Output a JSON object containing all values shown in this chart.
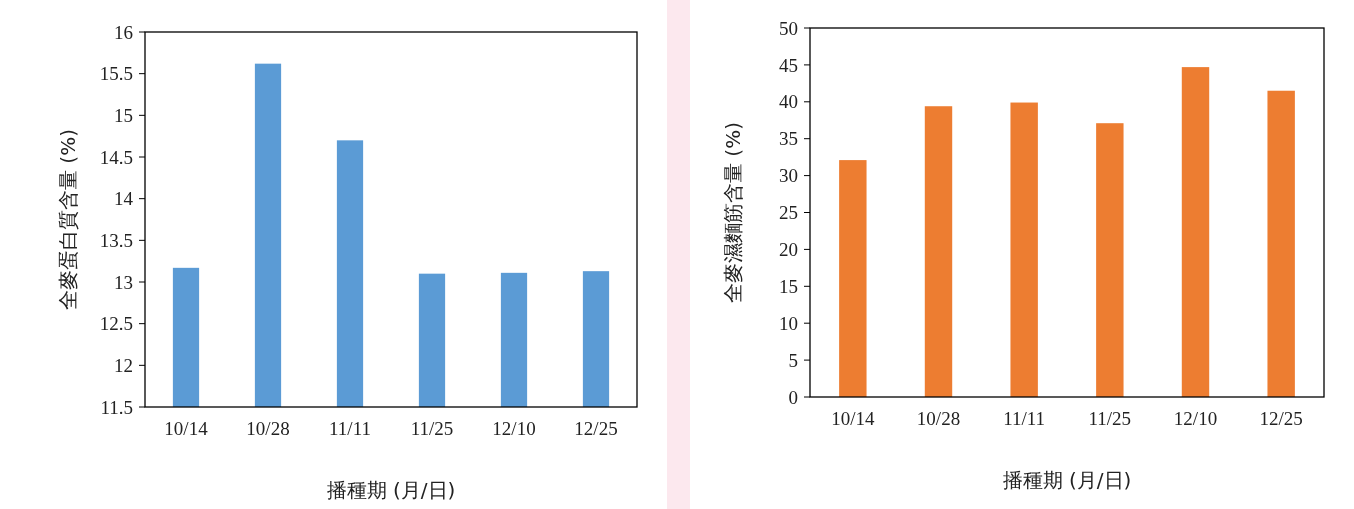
{
  "chart_data": [
    {
      "type": "bar",
      "categories": [
        "10/14",
        "10/28",
        "11/11",
        "11/25",
        "12/10",
        "12/25"
      ],
      "values": [
        13.17,
        15.62,
        14.7,
        13.1,
        13.11,
        13.13
      ],
      "color": "#5b9bd5",
      "ylim": [
        11.5,
        16
      ],
      "yticks": [
        11.5,
        12,
        12.5,
        13,
        13.5,
        14,
        14.5,
        15,
        15.5,
        16
      ],
      "xlabel": "播種期 (月/日)",
      "ylabel": "全麥蛋白質含量 (%)",
      "grid": false
    },
    {
      "type": "bar",
      "categories": [
        "10/14",
        "10/28",
        "11/11",
        "11/25",
        "12/10",
        "12/25"
      ],
      "values": [
        32.1,
        39.4,
        39.9,
        37.1,
        44.7,
        41.5
      ],
      "color": "#ed7d31",
      "ylim": [
        0,
        50
      ],
      "yticks": [
        0,
        5,
        10,
        15,
        20,
        25,
        30,
        35,
        40,
        45,
        50
      ],
      "xlabel": "播種期 (月/日)",
      "ylabel": "全麥濕麵筋含量 (%)",
      "grid": false
    }
  ]
}
